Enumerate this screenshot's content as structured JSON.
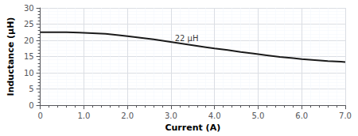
{
  "chart_data": {
    "type": "line",
    "xlabel": "Current (A)",
    "ylabel": "Inductance (μH)",
    "annotations": [
      {
        "text": "22 μH",
        "x": 3.05,
        "y": 20.5
      }
    ],
    "x": [
      0.0,
      0.3,
      0.6,
      0.9,
      1.2,
      1.5,
      1.8,
      2.0,
      2.3,
      2.6,
      2.9,
      3.2,
      3.5,
      3.8,
      4.0,
      4.3,
      4.6,
      4.9,
      5.2,
      5.5,
      5.8,
      6.0,
      6.3,
      6.6,
      6.9,
      7.0
    ],
    "values": [
      22.5,
      22.5,
      22.5,
      22.4,
      22.2,
      22.0,
      21.6,
      21.3,
      20.8,
      20.3,
      19.7,
      19.1,
      18.5,
      17.9,
      17.5,
      17.0,
      16.4,
      15.9,
      15.4,
      14.9,
      14.5,
      14.2,
      13.9,
      13.6,
      13.4,
      13.3
    ],
    "color": "#1a1a1a",
    "xlim": [
      0,
      7.0
    ],
    "ylim": [
      0,
      30
    ],
    "xticks": [
      0,
      {
        "value": 1.0,
        "label": "1.0"
      },
      {
        "value": 2.0,
        "label": "2.0"
      },
      {
        "value": 3.0,
        "label": "3.0"
      },
      {
        "value": 4.0,
        "label": "4.0"
      },
      {
        "value": 5.0,
        "label": "5.0"
      },
      {
        "value": 6.0,
        "label": "6.0"
      },
      {
        "value": 7.0,
        "label": "7.0"
      }
    ],
    "yticks": [
      0,
      5,
      10,
      15,
      20,
      25,
      30
    ],
    "grid": true
  }
}
